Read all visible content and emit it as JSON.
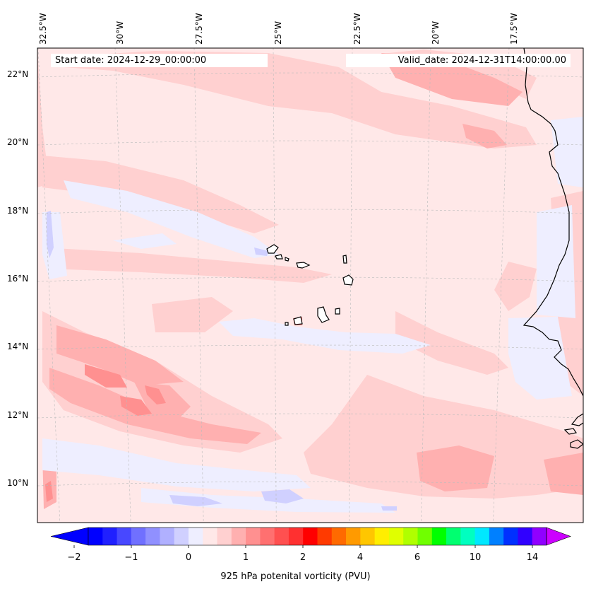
{
  "map": {
    "start_label": "Start date: 2024-12-29_00:00:00",
    "valid_label": "Valid_date: 2024-12-31T14:00:00.00",
    "longitude_labels": [
      "32.5°W",
      "30°W",
      "27.5°W",
      "25°W",
      "22.5°W",
      "20°W",
      "17.5°W"
    ],
    "latitude_labels": [
      "22°N",
      "20°N",
      "18°N",
      "16°N",
      "14°N",
      "12°N",
      "10°N"
    ],
    "extent": {
      "lon_min": -32.6,
      "lon_max": -15.4,
      "lat_min": 8.9,
      "lat_max": 22.8
    },
    "field": "925 hPa potential vorticity",
    "background_color": "#ffe8e8"
  },
  "colorbar": {
    "label": "925 hPa potenital vorticity (PVU)",
    "tick_labels": [
      "−2",
      "−1",
      "0",
      "1",
      "2",
      "4",
      "6",
      "10",
      "14"
    ],
    "colors": [
      "#0000ff",
      "#2020ff",
      "#4848ff",
      "#7070ff",
      "#9090ff",
      "#b0b0ff",
      "#d0d0ff",
      "#eeeeff",
      "#ffe8e8",
      "#ffd0d0",
      "#ffb0b0",
      "#ff9090",
      "#ff7070",
      "#ff5050",
      "#ff3030",
      "#ff0000",
      "#ff3a00",
      "#ff6a00",
      "#ff9a00",
      "#ffc600",
      "#ffee00",
      "#e0ff00",
      "#b0ff00",
      "#70ff00",
      "#00ff00",
      "#00ff70",
      "#00ffc0",
      "#00e8ff",
      "#0080ff",
      "#0030ff",
      "#3000ff",
      "#9000ff"
    ],
    "under_color": "#0000ff",
    "over_color": "#cc00ff"
  }
}
